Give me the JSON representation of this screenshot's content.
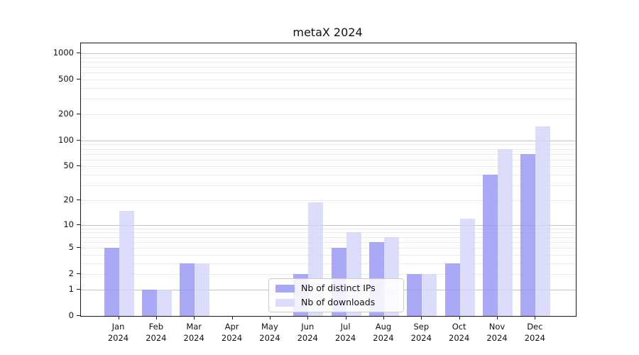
{
  "chart_data": {
    "type": "bar",
    "title": "metaX 2024",
    "x_tick_months": [
      "Jan",
      "Feb",
      "Mar",
      "Apr",
      "May",
      "Jun",
      "Jul",
      "Aug",
      "Sep",
      "Oct",
      "Nov",
      "Dec"
    ],
    "x_tick_year": "2024",
    "series": [
      {
        "name": "Nb of distinct IPs",
        "color": "rgba(148,148,243,0.8)",
        "swatch_color": "#a9a9f3",
        "values": [
          5,
          1,
          3,
          0,
          0,
          2,
          5,
          6,
          2,
          3,
          40,
          70
        ]
      },
      {
        "name": "Nb of downloads",
        "color": "rgba(211,211,250,0.8)",
        "swatch_color": "#dcdcfa",
        "values": [
          15,
          1,
          3,
          0,
          0,
          19,
          8,
          7,
          2,
          12,
          80,
          145
        ]
      }
    ],
    "yscale": "log1p",
    "ylim": [
      0,
      1300
    ],
    "y_ticks": [
      0,
      1,
      2,
      5,
      10,
      20,
      50,
      100,
      200,
      500,
      1000
    ],
    "y_major_gridlines": [
      1,
      10,
      100,
      1000
    ],
    "y_minor_gridlines": [
      2,
      3,
      4,
      5,
      6,
      7,
      8,
      9,
      20,
      30,
      40,
      50,
      60,
      70,
      80,
      90,
      200,
      300,
      400,
      500,
      600,
      700,
      800,
      900
    ],
    "grid": true,
    "legend_position": "lower center"
  },
  "style": {
    "major_grid_color": "#c3c3c3",
    "minor_grid_color": "#ebebeb",
    "axis_color": "#1a1a1a"
  }
}
